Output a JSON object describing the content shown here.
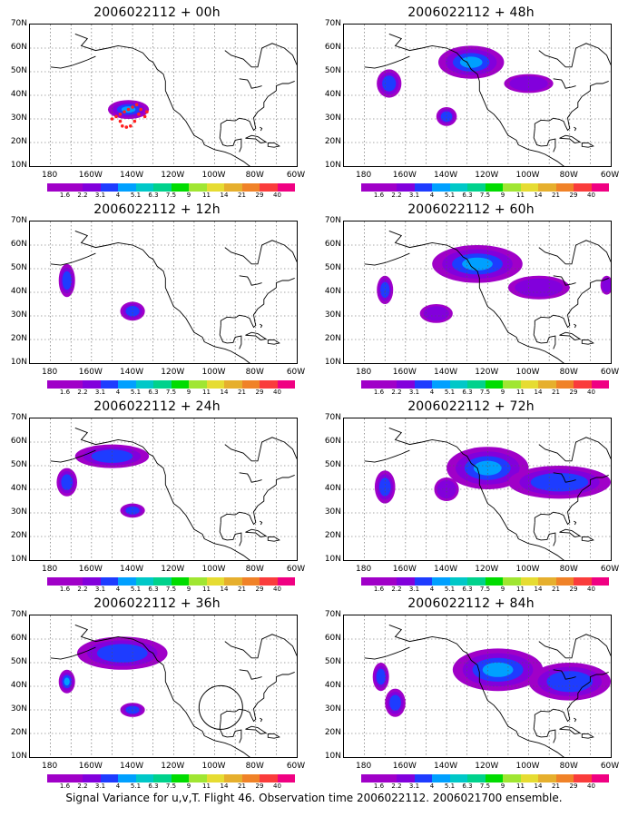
{
  "panels": [
    {
      "title": "2006022112 + 00h",
      "blobs": [
        {
          "lon": -142,
          "lat": 34,
          "rx": 10,
          "ry": 4,
          "level": 3
        }
      ],
      "dots": true,
      "circle": false
    },
    {
      "title": "2006022112 + 48h",
      "blobs": [
        {
          "lon": -128,
          "lat": 54,
          "rx": 16,
          "ry": 7,
          "level": 3
        },
        {
          "lon": -168,
          "lat": 45,
          "rx": 6,
          "ry": 6,
          "level": 2
        },
        {
          "lon": -140,
          "lat": 31,
          "rx": 5,
          "ry": 4,
          "level": 2
        },
        {
          "lon": -100,
          "lat": 45,
          "rx": 12,
          "ry": 4,
          "level": 1
        }
      ],
      "dots": false,
      "circle": false
    },
    {
      "title": "2006022112 + 12h",
      "blobs": [
        {
          "lon": -172,
          "lat": 45,
          "rx": 4,
          "ry": 7,
          "level": 2
        },
        {
          "lon": -140,
          "lat": 32,
          "rx": 6,
          "ry": 4,
          "level": 2
        }
      ],
      "dots": false,
      "circle": false
    },
    {
      "title": "2006022112 + 60h",
      "blobs": [
        {
          "lon": -125,
          "lat": 52,
          "rx": 22,
          "ry": 8,
          "level": 3
        },
        {
          "lon": -170,
          "lat": 41,
          "rx": 4,
          "ry": 6,
          "level": 2
        },
        {
          "lon": -145,
          "lat": 31,
          "rx": 8,
          "ry": 4,
          "level": 1
        },
        {
          "lon": -95,
          "lat": 42,
          "rx": 15,
          "ry": 5,
          "level": 1
        },
        {
          "lon": -62,
          "lat": 43,
          "rx": 3,
          "ry": 4,
          "level": 1
        }
      ],
      "dots": false,
      "circle": false
    },
    {
      "title": "2006022112 + 24h",
      "blobs": [
        {
          "lon": -150,
          "lat": 54,
          "rx": 18,
          "ry": 5,
          "level": 2
        },
        {
          "lon": -172,
          "lat": 43,
          "rx": 5,
          "ry": 6,
          "level": 2
        },
        {
          "lon": -140,
          "lat": 31,
          "rx": 6,
          "ry": 3,
          "level": 2
        }
      ],
      "dots": false,
      "circle": false
    },
    {
      "title": "2006022112 + 72h",
      "blobs": [
        {
          "lon": -120,
          "lat": 49,
          "rx": 20,
          "ry": 9,
          "level": 3
        },
        {
          "lon": -170,
          "lat": 41,
          "rx": 5,
          "ry": 7,
          "level": 2
        },
        {
          "lon": -85,
          "lat": 43,
          "rx": 25,
          "ry": 7,
          "level": 2
        },
        {
          "lon": -140,
          "lat": 40,
          "rx": 6,
          "ry": 5,
          "level": 1
        }
      ],
      "dots": false,
      "circle": false
    },
    {
      "title": "2006022112 + 36h",
      "blobs": [
        {
          "lon": -145,
          "lat": 54,
          "rx": 22,
          "ry": 7,
          "level": 2
        },
        {
          "lon": -172,
          "lat": 42,
          "rx": 4,
          "ry": 5,
          "level": 3
        },
        {
          "lon": -140,
          "lat": 30,
          "rx": 6,
          "ry": 3,
          "level": 2
        }
      ],
      "dots": false,
      "circle": true
    },
    {
      "title": "2006022112 + 84h",
      "blobs": [
        {
          "lon": -115,
          "lat": 47,
          "rx": 22,
          "ry": 9,
          "level": 3
        },
        {
          "lon": -172,
          "lat": 44,
          "rx": 4,
          "ry": 6,
          "level": 2
        },
        {
          "lon": -165,
          "lat": 33,
          "rx": 5,
          "ry": 6,
          "level": 2
        },
        {
          "lon": -80,
          "lat": 42,
          "rx": 20,
          "ry": 8,
          "level": 2
        }
      ],
      "dots": false,
      "circle": false
    }
  ],
  "lat_labels": [
    "70N",
    "60N",
    "50N",
    "40N",
    "30N",
    "20N",
    "10N"
  ],
  "lon_labels": [
    "180",
    "160W",
    "140W",
    "120W",
    "100W",
    "80W",
    "60W"
  ],
  "colorbar": {
    "labels": [
      "1.6",
      "2.2",
      "3.1",
      "4",
      "5.1",
      "6.3",
      "7.5",
      "9",
      "11",
      "14",
      "21",
      "29",
      "40"
    ],
    "colors": [
      "#a000c8",
      "#8200dc",
      "#1e3cff",
      "#00a0ff",
      "#00c8c8",
      "#00d28c",
      "#00dc00",
      "#a0e632",
      "#e6dc32",
      "#e6af2d",
      "#f08228",
      "#fa3c3c",
      "#f00082"
    ]
  },
  "caption": "Signal Variance for u,v,T. Flight 46. Observation time 2006022112. 2006021700 ensemble."
}
